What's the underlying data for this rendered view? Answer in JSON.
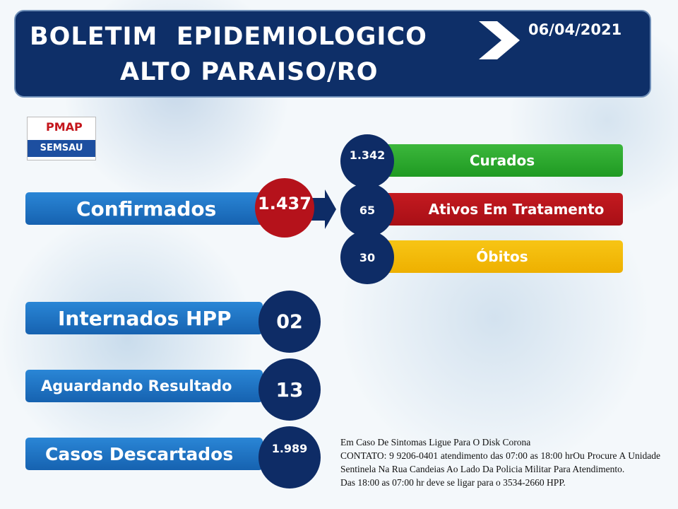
{
  "header": {
    "title_line1": "BOLETIM  EPIDEMIOLOGICO",
    "title_line2": "ALTO PARAISO/RO",
    "date": "06/04/2021"
  },
  "logo": {
    "name": "PMAP",
    "department": "SEMSAU"
  },
  "confirmed": {
    "label": "Confirmados",
    "value": "1.437"
  },
  "outcomes": [
    {
      "label": "Curados",
      "value": "1.342"
    },
    {
      "label": "Ativos Em Tratamento",
      "value": "65"
    },
    {
      "label": "Óbitos",
      "value": "30"
    }
  ],
  "stats": [
    {
      "label": "Internados HPP",
      "value": "02"
    },
    {
      "label": "Aguardando Resultado",
      "value": "13"
    },
    {
      "label": "Casos Descartados",
      "value": "1.989"
    }
  ],
  "contact": [
    "Em Caso De Sintomas Ligue Para O Disk Corona",
    "CONTATO: 9 9206-0401 atendimento das 07:00 as 18:00 hrOu Procure A Unidade Sentinela Na Rua Candeias Ao Lado Da Policia Militar Para Atendimento.",
    "Das 18:00 as 07:00 hr deve se ligar para o 3534-2660 HPP."
  ]
}
